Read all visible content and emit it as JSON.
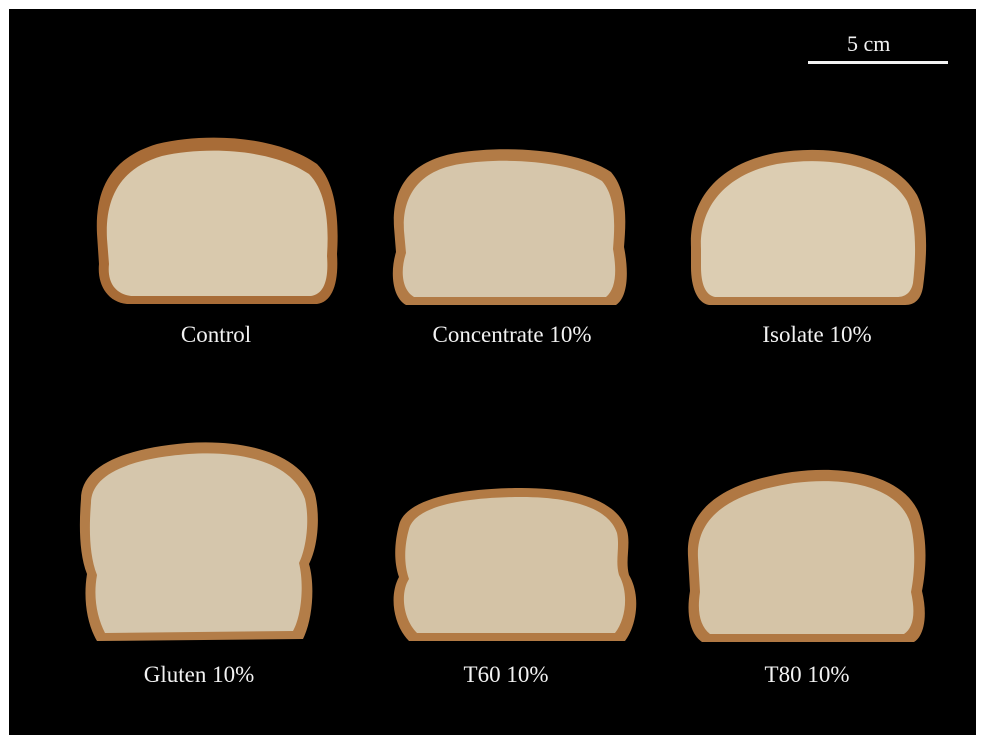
{
  "scale_bar": {
    "label": "5 cm"
  },
  "samples": [
    {
      "label": "Control"
    },
    {
      "label": "Concentrate 10%"
    },
    {
      "label": "Isolate 10%"
    },
    {
      "label": "Gluten 10%"
    },
    {
      "label": "T60 10%"
    },
    {
      "label": "T80 10%"
    }
  ],
  "colors": {
    "background": "#000000",
    "crust": "#b07a45",
    "crumb": "#d8c7ab",
    "text": "#f2f2f2"
  }
}
